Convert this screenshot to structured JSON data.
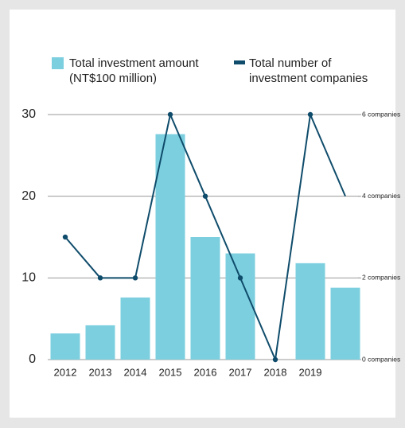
{
  "chart_data": {
    "type": "bar_line",
    "categories": [
      "2012",
      "2013",
      "2014",
      "2015",
      "2016",
      "2017",
      "2018",
      "2019",
      null
    ],
    "series": [
      {
        "name": "Total investment amount (NT$100 million)",
        "color": "#7ccfdf",
        "type": "bar",
        "values": [
          3.2,
          4.2,
          7.6,
          27.6,
          15,
          13,
          0,
          11.8,
          8.8
        ]
      },
      {
        "name": "Total number of investment companies",
        "color": "#0f4c6b",
        "type": "line",
        "axis": "y2",
        "values": [
          3,
          2,
          2,
          6,
          4,
          2,
          0,
          6,
          4
        ]
      }
    ],
    "ylim": [
      0,
      30
    ],
    "yticks": [
      0,
      10,
      20,
      30
    ],
    "y2lim": [
      0,
      6
    ],
    "y2ticks": [
      {
        "value": 0,
        "label": "0 companies"
      },
      {
        "value": 2,
        "label": "2 companies"
      },
      {
        "value": 4,
        "label": "4 companies"
      },
      {
        "value": 6,
        "label": "6 companies"
      }
    ],
    "grid": true
  }
}
